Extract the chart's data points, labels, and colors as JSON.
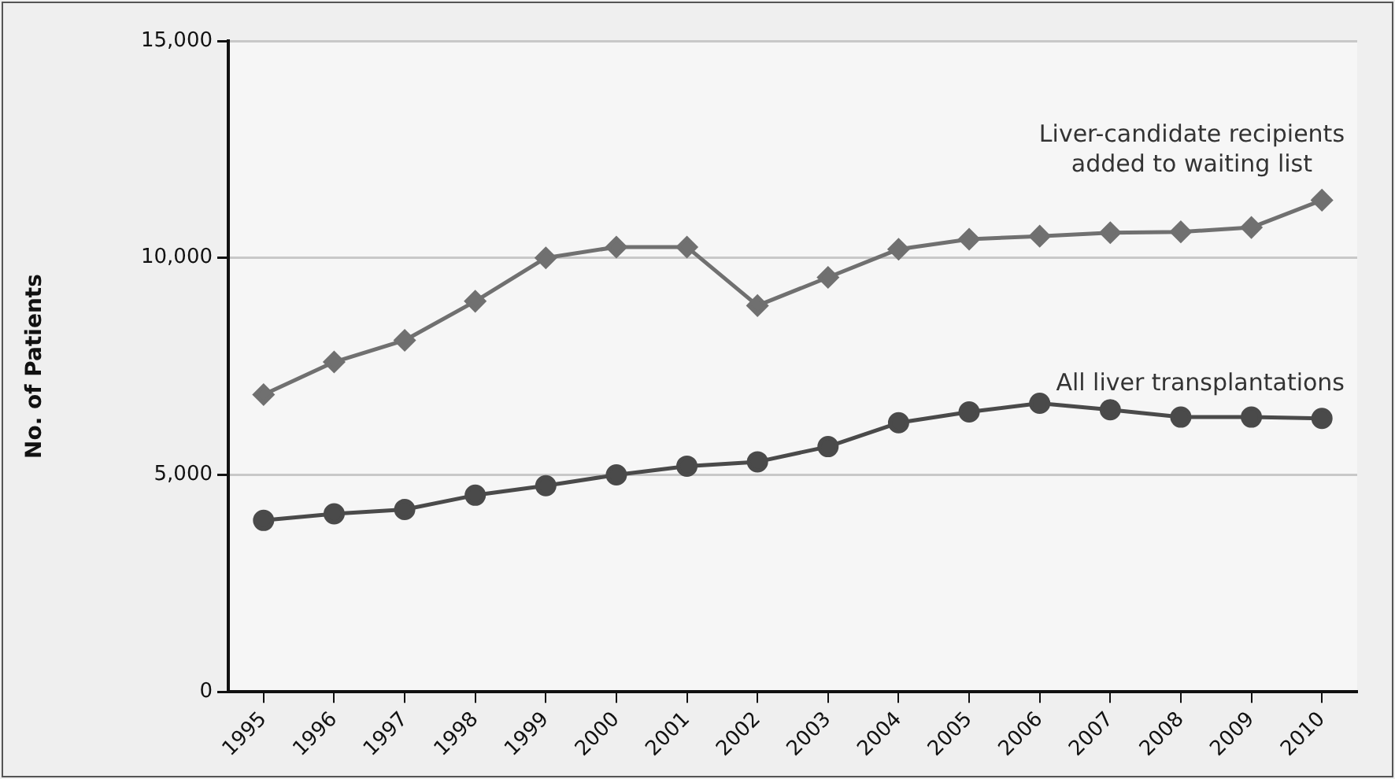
{
  "chart_data": {
    "type": "line",
    "ylabel": "No. of Patients",
    "categories": [
      "1995",
      "1996",
      "1997",
      "1998",
      "1999",
      "2000",
      "2001",
      "2002",
      "2003",
      "2004",
      "2005",
      "2006",
      "2007",
      "2008",
      "2009",
      "2010"
    ],
    "series": [
      {
        "name": "Liver-candidate recipients added to waiting list",
        "color": "#707070",
        "marker": "diamond",
        "values": [
          6850,
          7600,
          8100,
          9000,
          10000,
          10250,
          10250,
          8900,
          9550,
          10200,
          10430,
          10500,
          10580,
          10600,
          10700,
          11330
        ]
      },
      {
        "name": "All liver transplantations",
        "color": "#4a4a4a",
        "marker": "circle",
        "values": [
          3950,
          4100,
          4200,
          4530,
          4750,
          5000,
          5200,
          5300,
          5650,
          6200,
          6450,
          6650,
          6500,
          6330,
          6330,
          6300
        ]
      }
    ],
    "ylim": [
      0,
      15000
    ],
    "yticks": [
      {
        "value": 0,
        "label": "0"
      },
      {
        "value": 5000,
        "label": "5,000"
      },
      {
        "value": 10000,
        "label": "10,000"
      },
      {
        "value": 15000,
        "label": "15,000"
      }
    ],
    "grid": "y",
    "legend": false,
    "line_style": "solid"
  }
}
